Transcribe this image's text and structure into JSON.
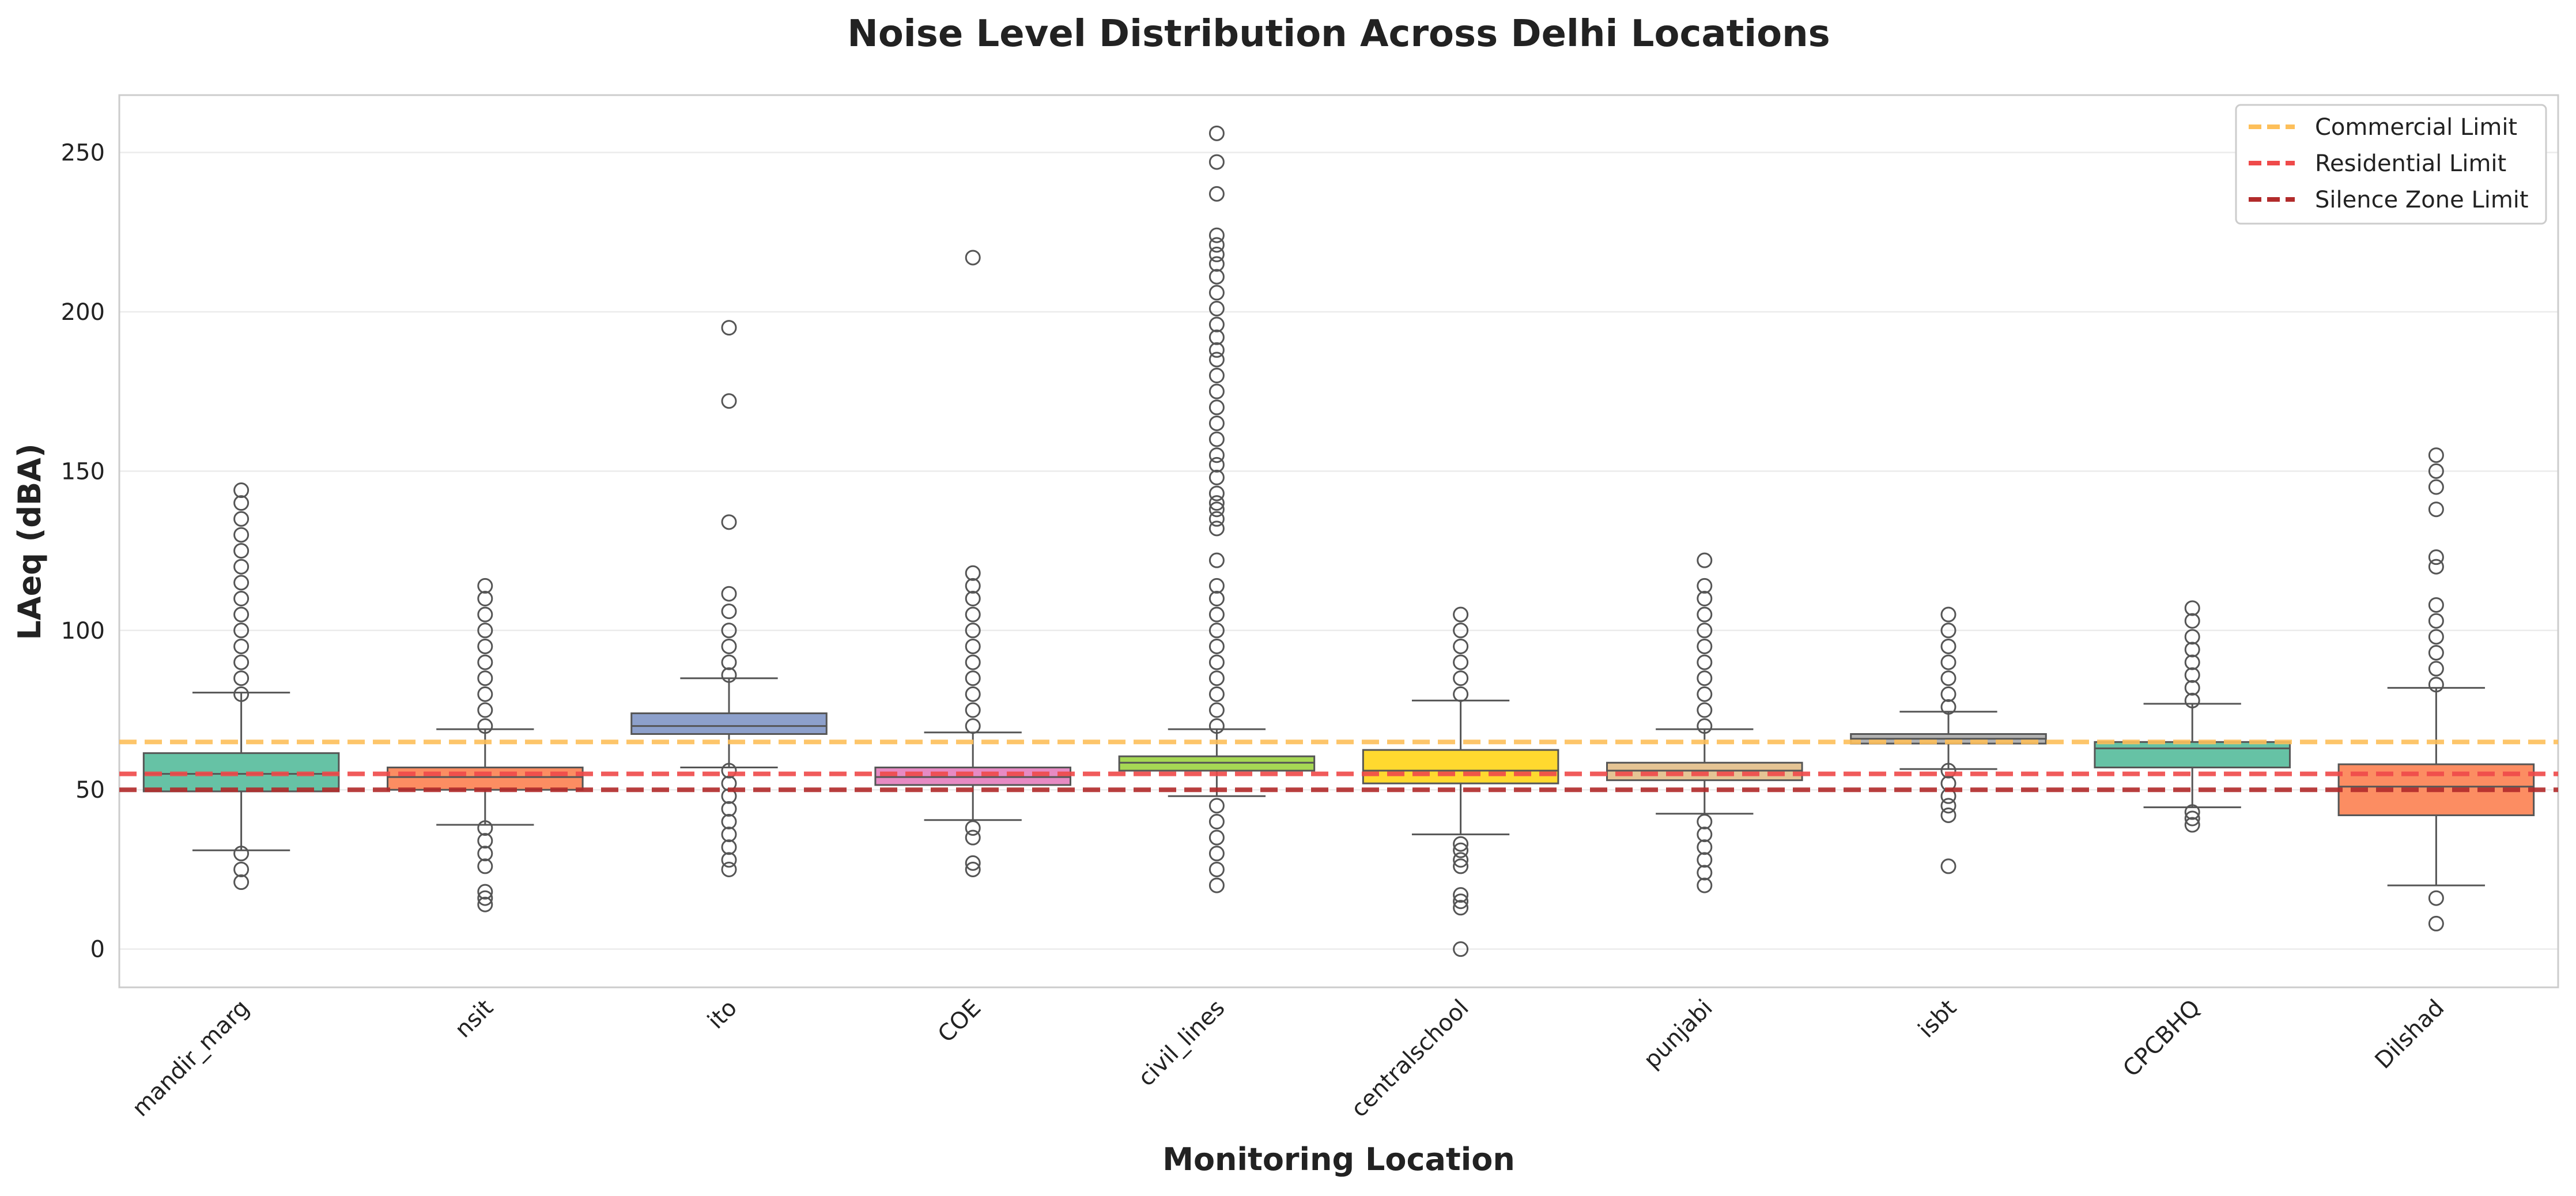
{
  "chart_data": {
    "type": "box",
    "title": "Noise Level Distribution Across Delhi Locations",
    "xlabel": "Monitoring Location",
    "ylabel": "LAeq (dBA)",
    "ylim": [
      -12,
      268
    ],
    "yticks": [
      0,
      50,
      100,
      150,
      200,
      250
    ],
    "grid": "y",
    "legend_position": "top-right",
    "categories": [
      "mandir_marg",
      "nsit",
      "ito",
      "COE",
      "civil_lines",
      "centralschool",
      "punjabi",
      "isbt",
      "CPCBHQ",
      "Dilshad"
    ],
    "boxes": [
      {
        "category": "mandir_marg",
        "color": "#66c2a5",
        "whisker_low": 31,
        "q1": 49.5,
        "median": 55,
        "q3": 61.5,
        "whisker_high": 80.5,
        "outliers": [
          21,
          25,
          30,
          80,
          85,
          90,
          95,
          100,
          105,
          110,
          115,
          120,
          125,
          130,
          135,
          140,
          144
        ]
      },
      {
        "category": "nsit",
        "color": "#fc8d62",
        "whisker_low": 39,
        "q1": 50,
        "median": 54,
        "q3": 57,
        "whisker_high": 69,
        "outliers": [
          14,
          16,
          18,
          26,
          30,
          34,
          38,
          70,
          75,
          80,
          85,
          90,
          95,
          100,
          105,
          110,
          114
        ]
      },
      {
        "category": "ito",
        "color": "#8da0cb",
        "whisker_low": 57,
        "q1": 67.5,
        "median": 70,
        "q3": 74,
        "whisker_high": 85,
        "outliers": [
          25,
          28,
          32,
          36,
          40,
          44,
          48,
          52,
          56,
          86,
          90,
          95,
          100,
          106,
          111.5,
          134,
          172,
          195
        ]
      },
      {
        "category": "COE",
        "color": "#e78ac3",
        "whisker_low": 40.5,
        "q1": 51.5,
        "median": 54,
        "q3": 57,
        "whisker_high": 68,
        "outliers": [
          25,
          27,
          35,
          38,
          70,
          75,
          80,
          85,
          90,
          95,
          100,
          105,
          110,
          114,
          118,
          217
        ]
      },
      {
        "category": "civil_lines",
        "color": "#a6d854",
        "whisker_low": 48,
        "q1": 56,
        "median": 58.5,
        "q3": 60.5,
        "whisker_high": 69,
        "outliers": [
          20,
          25,
          30,
          35,
          40,
          45,
          70,
          75,
          80,
          85,
          90,
          95,
          100,
          105,
          110,
          114,
          122,
          132,
          135,
          138,
          140,
          143,
          148,
          152,
          155,
          160,
          165,
          170,
          175,
          180,
          185,
          188,
          192,
          196,
          201,
          206,
          211,
          215,
          218,
          221,
          224,
          237,
          247,
          256
        ]
      },
      {
        "category": "centralschool",
        "color": "#ffd92f",
        "whisker_low": 36,
        "q1": 52,
        "median": 56,
        "q3": 62.5,
        "whisker_high": 78,
        "outliers": [
          0,
          13,
          15,
          17,
          26,
          28,
          31,
          33,
          80,
          85,
          90,
          95,
          100,
          105
        ]
      },
      {
        "category": "punjabi",
        "color": "#e5c494",
        "whisker_low": 42.5,
        "q1": 53,
        "median": 56,
        "q3": 58.5,
        "whisker_high": 69,
        "outliers": [
          20,
          24,
          28,
          32,
          36,
          40,
          70,
          75,
          80,
          85,
          90,
          95,
          100,
          105,
          110,
          114,
          122
        ]
      },
      {
        "category": "isbt",
        "color": "#b3b3b3",
        "whisker_low": 56.5,
        "q1": 64.5,
        "median": 66,
        "q3": 67.5,
        "whisker_high": 74.5,
        "outliers": [
          26,
          42,
          45,
          48,
          52,
          56,
          76,
          80,
          85,
          90,
          95,
          100,
          105
        ]
      },
      {
        "category": "CPCBHQ",
        "color": "#66c2a5",
        "whisker_low": 44.5,
        "q1": 57,
        "median": 63,
        "q3": 65,
        "whisker_high": 77,
        "outliers": [
          39,
          41,
          43,
          78,
          82,
          86,
          90,
          94,
          98,
          103,
          107
        ]
      },
      {
        "category": "Dilshad",
        "color": "#fc8d62",
        "whisker_low": 20,
        "q1": 42,
        "median": 51,
        "q3": 58,
        "whisker_high": 82,
        "outliers": [
          8,
          16,
          83,
          88,
          93,
          98,
          103,
          108,
          120,
          123,
          138,
          145,
          150,
          155
        ]
      }
    ],
    "reference_lines": [
      {
        "label": "Commercial Limit",
        "y": 65,
        "color": "#fdbf5a"
      },
      {
        "label": "Residential Limit",
        "y": 55,
        "color": "#ef4a4a"
      },
      {
        "label": "Silence Zone Limit",
        "y": 50,
        "color": "#b22b2b"
      }
    ]
  }
}
